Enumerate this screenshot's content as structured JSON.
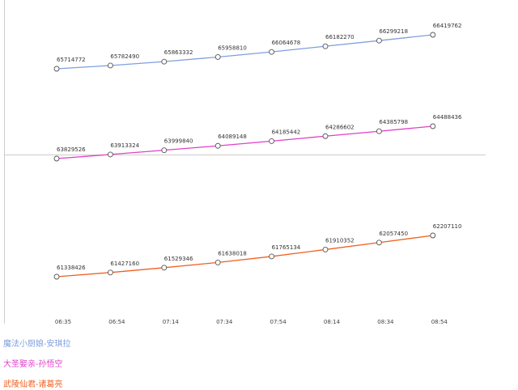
{
  "chart_data": {
    "type": "line",
    "title": "",
    "xlabel": "",
    "ylabel": "",
    "x": [
      "06:35",
      "06:54",
      "07:14",
      "07:34",
      "07:54",
      "08:14",
      "08:34",
      "08:54"
    ],
    "grid": false,
    "legend_placement": "bottom-left",
    "series": [
      {
        "name": "魔法小厨娘-安琪拉",
        "color": "#7f9fdf",
        "values": [
          65714772,
          65782490,
          65863332,
          65958810,
          66064678,
          66182270,
          66299218,
          66419762
        ]
      },
      {
        "name": "大圣娶亲-孙悟空",
        "color": "#e040c8",
        "values": [
          63829526,
          63913324,
          63999840,
          64089148,
          64185442,
          64286602,
          64385798,
          64488436
        ]
      },
      {
        "name": "武陵仙君-诸葛亮",
        "color": "#f06020",
        "values": [
          61338426,
          61427160,
          61529346,
          61638018,
          61765134,
          61910352,
          62057450,
          62207110
        ]
      }
    ]
  }
}
